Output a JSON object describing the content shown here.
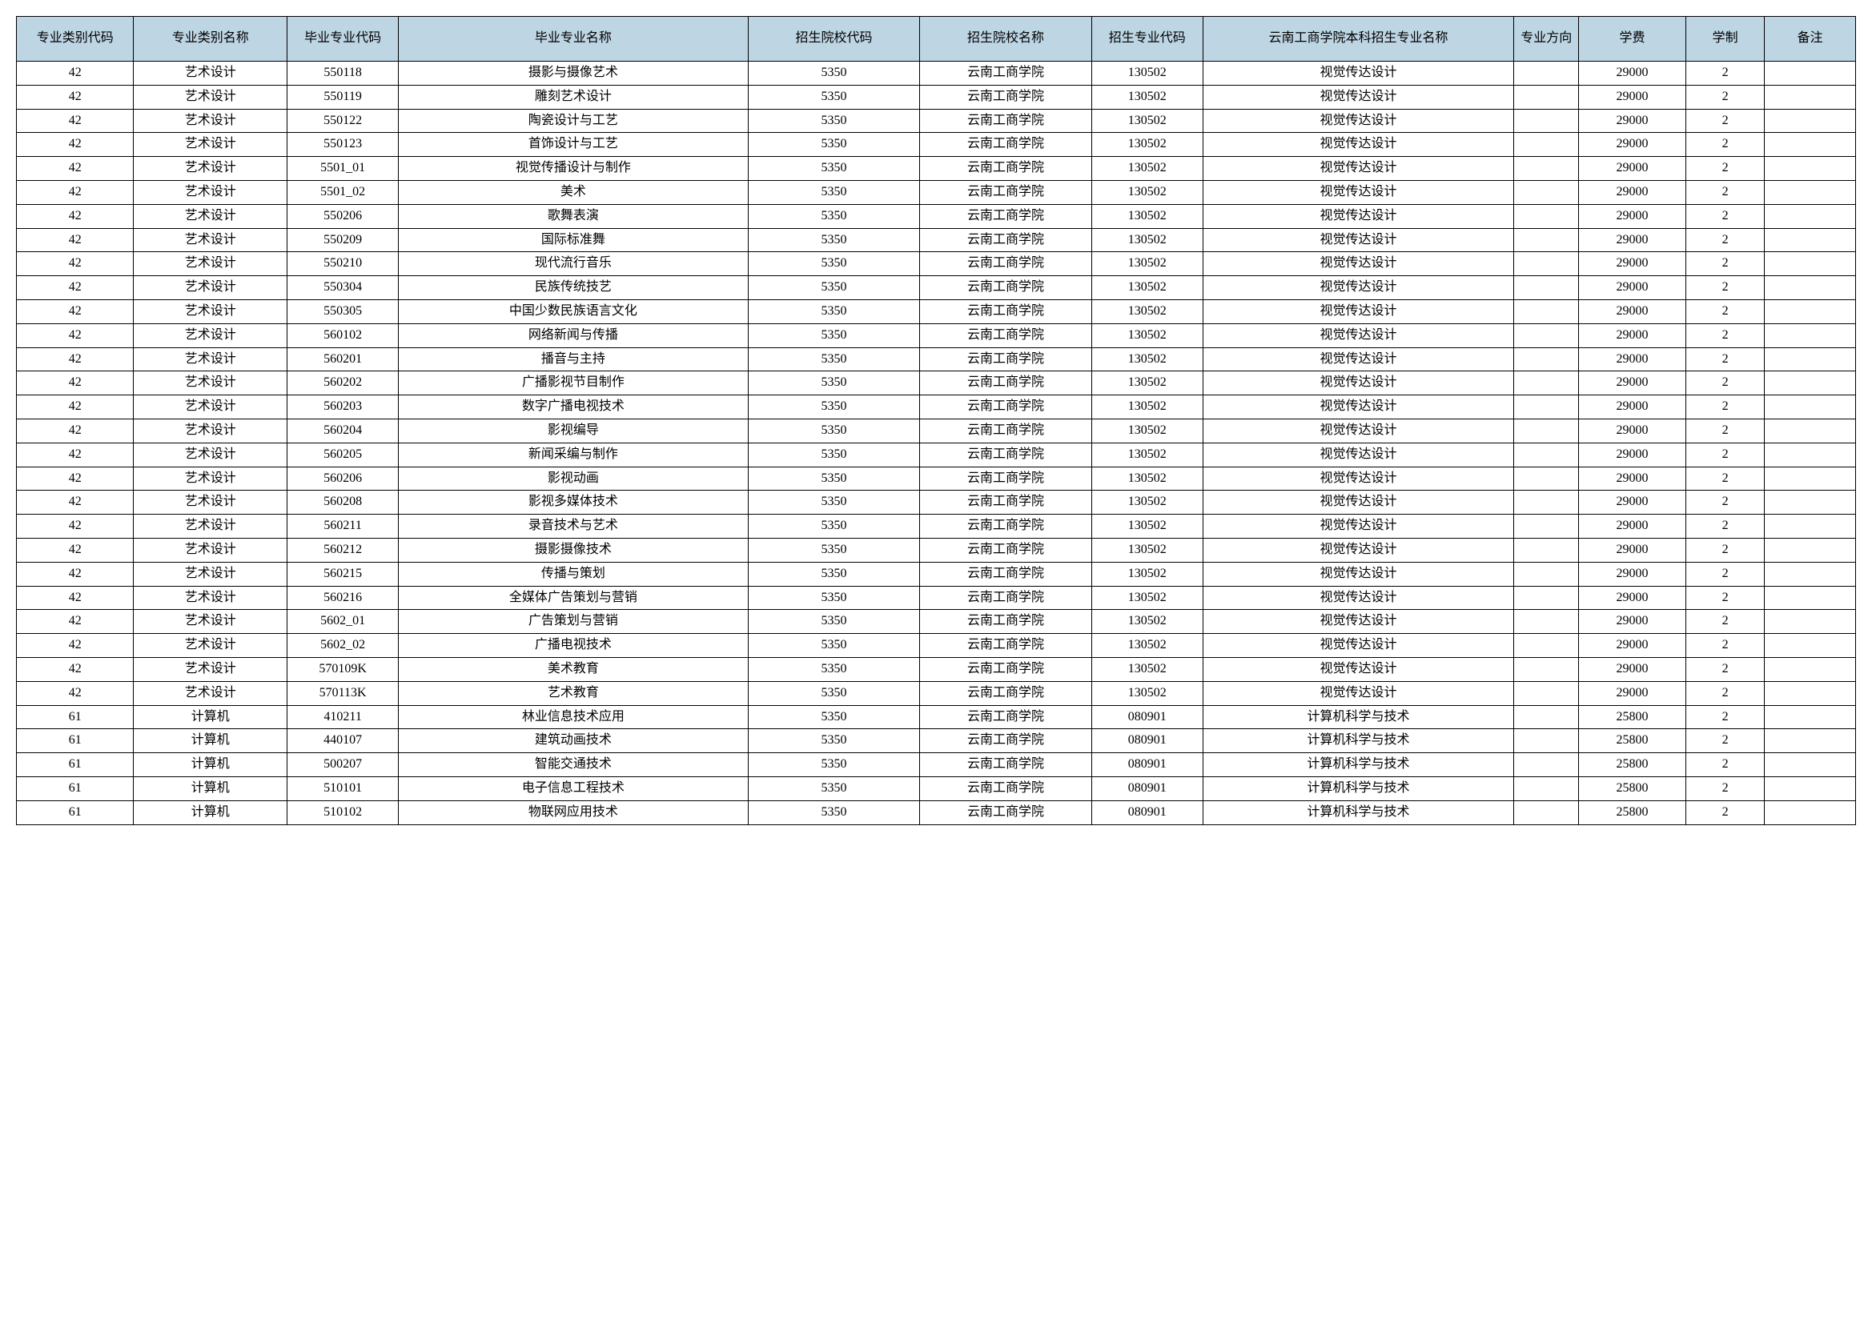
{
  "table": {
    "header_bg": "#bed5e4",
    "border_color": "#000000",
    "columns": [
      "专业类别代码",
      "专业类别名称",
      "毕业专业代码",
      "毕业专业名称",
      "招生院校代码",
      "招生院校名称",
      "招生专业代码",
      "云南工商学院本科招生专业名称",
      "专业方向",
      "学费",
      "学制",
      "备注"
    ],
    "rows": [
      [
        "42",
        "艺术设计",
        "550118",
        "摄影与摄像艺术",
        "5350",
        "云南工商学院",
        "130502",
        "视觉传达设计",
        "",
        "29000",
        "2",
        ""
      ],
      [
        "42",
        "艺术设计",
        "550119",
        "雕刻艺术设计",
        "5350",
        "云南工商学院",
        "130502",
        "视觉传达设计",
        "",
        "29000",
        "2",
        ""
      ],
      [
        "42",
        "艺术设计",
        "550122",
        "陶瓷设计与工艺",
        "5350",
        "云南工商学院",
        "130502",
        "视觉传达设计",
        "",
        "29000",
        "2",
        ""
      ],
      [
        "42",
        "艺术设计",
        "550123",
        "首饰设计与工艺",
        "5350",
        "云南工商学院",
        "130502",
        "视觉传达设计",
        "",
        "29000",
        "2",
        ""
      ],
      [
        "42",
        "艺术设计",
        "5501_01",
        "视觉传播设计与制作",
        "5350",
        "云南工商学院",
        "130502",
        "视觉传达设计",
        "",
        "29000",
        "2",
        ""
      ],
      [
        "42",
        "艺术设计",
        "5501_02",
        "美术",
        "5350",
        "云南工商学院",
        "130502",
        "视觉传达设计",
        "",
        "29000",
        "2",
        ""
      ],
      [
        "42",
        "艺术设计",
        "550206",
        "歌舞表演",
        "5350",
        "云南工商学院",
        "130502",
        "视觉传达设计",
        "",
        "29000",
        "2",
        ""
      ],
      [
        "42",
        "艺术设计",
        "550209",
        "国际标准舞",
        "5350",
        "云南工商学院",
        "130502",
        "视觉传达设计",
        "",
        "29000",
        "2",
        ""
      ],
      [
        "42",
        "艺术设计",
        "550210",
        "现代流行音乐",
        "5350",
        "云南工商学院",
        "130502",
        "视觉传达设计",
        "",
        "29000",
        "2",
        ""
      ],
      [
        "42",
        "艺术设计",
        "550304",
        "民族传统技艺",
        "5350",
        "云南工商学院",
        "130502",
        "视觉传达设计",
        "",
        "29000",
        "2",
        ""
      ],
      [
        "42",
        "艺术设计",
        "550305",
        "中国少数民族语言文化",
        "5350",
        "云南工商学院",
        "130502",
        "视觉传达设计",
        "",
        "29000",
        "2",
        ""
      ],
      [
        "42",
        "艺术设计",
        "560102",
        "网络新闻与传播",
        "5350",
        "云南工商学院",
        "130502",
        "视觉传达设计",
        "",
        "29000",
        "2",
        ""
      ],
      [
        "42",
        "艺术设计",
        "560201",
        "播音与主持",
        "5350",
        "云南工商学院",
        "130502",
        "视觉传达设计",
        "",
        "29000",
        "2",
        ""
      ],
      [
        "42",
        "艺术设计",
        "560202",
        "广播影视节目制作",
        "5350",
        "云南工商学院",
        "130502",
        "视觉传达设计",
        "",
        "29000",
        "2",
        ""
      ],
      [
        "42",
        "艺术设计",
        "560203",
        "数字广播电视技术",
        "5350",
        "云南工商学院",
        "130502",
        "视觉传达设计",
        "",
        "29000",
        "2",
        ""
      ],
      [
        "42",
        "艺术设计",
        "560204",
        "影视编导",
        "5350",
        "云南工商学院",
        "130502",
        "视觉传达设计",
        "",
        "29000",
        "2",
        ""
      ],
      [
        "42",
        "艺术设计",
        "560205",
        "新闻采编与制作",
        "5350",
        "云南工商学院",
        "130502",
        "视觉传达设计",
        "",
        "29000",
        "2",
        ""
      ],
      [
        "42",
        "艺术设计",
        "560206",
        "影视动画",
        "5350",
        "云南工商学院",
        "130502",
        "视觉传达设计",
        "",
        "29000",
        "2",
        ""
      ],
      [
        "42",
        "艺术设计",
        "560208",
        "影视多媒体技术",
        "5350",
        "云南工商学院",
        "130502",
        "视觉传达设计",
        "",
        "29000",
        "2",
        ""
      ],
      [
        "42",
        "艺术设计",
        "560211",
        "录音技术与艺术",
        "5350",
        "云南工商学院",
        "130502",
        "视觉传达设计",
        "",
        "29000",
        "2",
        ""
      ],
      [
        "42",
        "艺术设计",
        "560212",
        "摄影摄像技术",
        "5350",
        "云南工商学院",
        "130502",
        "视觉传达设计",
        "",
        "29000",
        "2",
        ""
      ],
      [
        "42",
        "艺术设计",
        "560215",
        "传播与策划",
        "5350",
        "云南工商学院",
        "130502",
        "视觉传达设计",
        "",
        "29000",
        "2",
        ""
      ],
      [
        "42",
        "艺术设计",
        "560216",
        "全媒体广告策划与营销",
        "5350",
        "云南工商学院",
        "130502",
        "视觉传达设计",
        "",
        "29000",
        "2",
        ""
      ],
      [
        "42",
        "艺术设计",
        "5602_01",
        "广告策划与营销",
        "5350",
        "云南工商学院",
        "130502",
        "视觉传达设计",
        "",
        "29000",
        "2",
        ""
      ],
      [
        "42",
        "艺术设计",
        "5602_02",
        "广播电视技术",
        "5350",
        "云南工商学院",
        "130502",
        "视觉传达设计",
        "",
        "29000",
        "2",
        ""
      ],
      [
        "42",
        "艺术设计",
        "570109K",
        "美术教育",
        "5350",
        "云南工商学院",
        "130502",
        "视觉传达设计",
        "",
        "29000",
        "2",
        ""
      ],
      [
        "42",
        "艺术设计",
        "570113K",
        "艺术教育",
        "5350",
        "云南工商学院",
        "130502",
        "视觉传达设计",
        "",
        "29000",
        "2",
        ""
      ],
      [
        "61",
        "计算机",
        "410211",
        "林业信息技术应用",
        "5350",
        "云南工商学院",
        "080901",
        "计算机科学与技术",
        "",
        "25800",
        "2",
        ""
      ],
      [
        "61",
        "计算机",
        "440107",
        "建筑动画技术",
        "5350",
        "云南工商学院",
        "080901",
        "计算机科学与技术",
        "",
        "25800",
        "2",
        ""
      ],
      [
        "61",
        "计算机",
        "500207",
        "智能交通技术",
        "5350",
        "云南工商学院",
        "080901",
        "计算机科学与技术",
        "",
        "25800",
        "2",
        ""
      ],
      [
        "61",
        "计算机",
        "510101",
        "电子信息工程技术",
        "5350",
        "云南工商学院",
        "080901",
        "计算机科学与技术",
        "",
        "25800",
        "2",
        ""
      ],
      [
        "61",
        "计算机",
        "510102",
        "物联网应用技术",
        "5350",
        "云南工商学院",
        "080901",
        "计算机科学与技术",
        "",
        "25800",
        "2",
        ""
      ]
    ]
  }
}
